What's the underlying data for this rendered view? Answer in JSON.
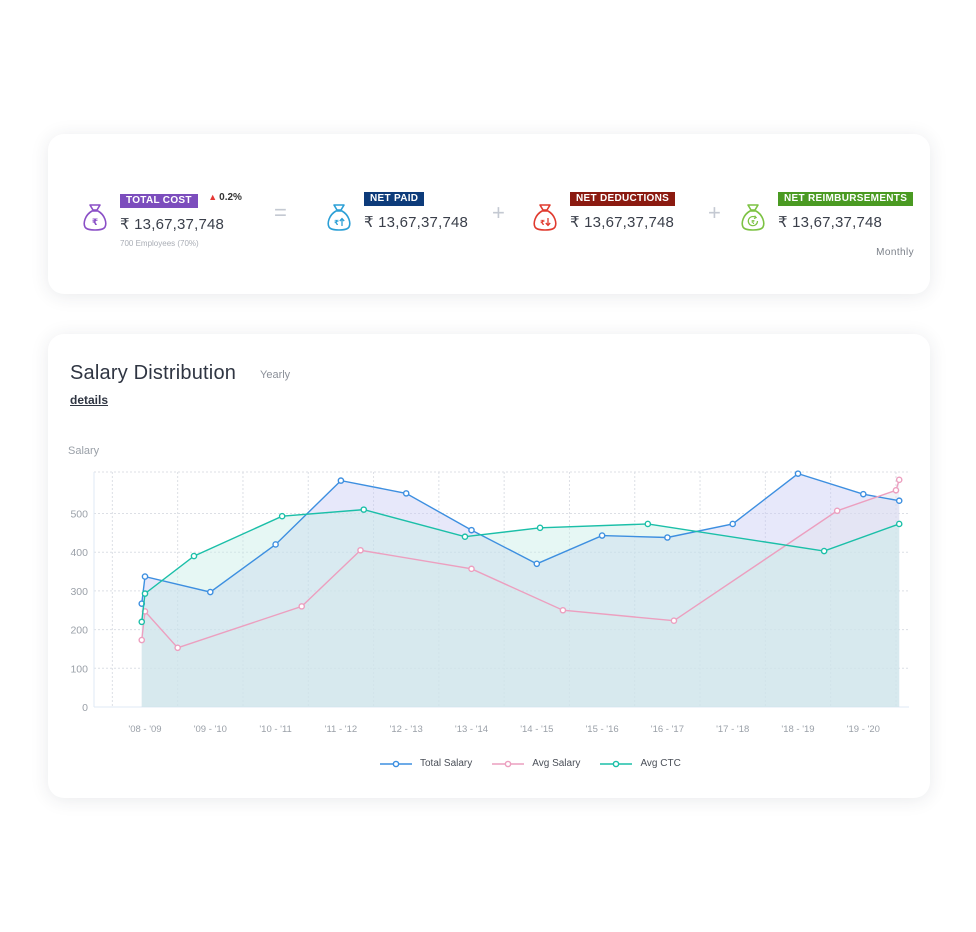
{
  "summary": {
    "total_cost": {
      "tag": "TOTAL COST",
      "tag_color": "#7c4dbd",
      "delta": "0.2%",
      "amount": "₹ 13,67,37,748",
      "sub": "700 Employees (70%)",
      "icon": "rupee-bag-icon",
      "icon_color": "#8a4fc6"
    },
    "equals_sign": "=",
    "net_paid": {
      "tag": "NET PAID",
      "tag_color": "#0d3b7a",
      "amount": "₹ 13,67,37,748",
      "icon": "rupee-up-bag-icon",
      "icon_color": "#2a9fd6"
    },
    "plus_sign": "+",
    "net_deductions": {
      "tag": "NET DEDUCTIONS",
      "tag_color": "#8b1a10",
      "amount": "₹ 13,67,37,748",
      "icon": "rupee-down-bag-icon",
      "icon_color": "#e03a2e"
    },
    "net_reimbursements": {
      "tag": "NET REIMBURSEMENTS",
      "tag_color": "#4a9a22",
      "amount": "₹ 13,67,37,748",
      "icon": "rupee-refresh-bag-icon",
      "icon_color": "#7cc242"
    },
    "period": "Monthly"
  },
  "chart_section": {
    "title": "Salary Distribution",
    "range": "Yearly",
    "details_link": "details"
  },
  "chart_data": {
    "type": "line",
    "ylabel": "Salary",
    "ylim": [
      0,
      600
    ],
    "yticks": [
      0,
      100,
      200,
      300,
      400,
      500
    ],
    "grid": true,
    "categories": [
      "'08 - '09",
      "'09 - '10",
      "'10 - '11",
      "'11 - '12",
      "'12 - '13",
      "'13 - '14",
      "'14 - '15",
      "'15 - '16",
      "'16 - '17",
      "'17 - '18",
      "'18 - '19",
      "'19 - '20"
    ],
    "series": [
      {
        "name": "Total Salary",
        "color": "#3d8fe0",
        "fill": "#c9cdf4",
        "points": [
          [
            -0.05,
            267
          ],
          [
            0.0,
            337
          ],
          [
            1.0,
            297
          ],
          [
            2.0,
            420
          ],
          [
            3.0,
            585
          ],
          [
            4.0,
            552
          ],
          [
            5.0,
            457
          ],
          [
            6.0,
            370
          ],
          [
            7.0,
            443
          ],
          [
            8.0,
            438
          ],
          [
            9.0,
            473
          ],
          [
            10.0,
            603
          ],
          [
            11.0,
            550
          ],
          [
            11.55,
            533
          ]
        ]
      },
      {
        "name": "Avg Salary",
        "color": "#ec9fbf",
        "fill": "#dfe3ee",
        "points": [
          [
            -0.05,
            173
          ],
          [
            0.0,
            247
          ],
          [
            0.5,
            153
          ],
          [
            2.4,
            260
          ],
          [
            3.3,
            405
          ],
          [
            5.0,
            357
          ],
          [
            6.4,
            250
          ],
          [
            8.1,
            223
          ],
          [
            10.6,
            507
          ],
          [
            11.5,
            560
          ],
          [
            11.55,
            587
          ]
        ]
      },
      {
        "name": "Avg CTC",
        "color": "#1bbfa8",
        "fill": "#c8eee6",
        "points": [
          [
            -0.05,
            220
          ],
          [
            0.0,
            293
          ],
          [
            0.75,
            390
          ],
          [
            2.1,
            493
          ],
          [
            3.35,
            510
          ],
          [
            4.9,
            440
          ],
          [
            6.05,
            463
          ],
          [
            7.7,
            473
          ],
          [
            10.4,
            403
          ],
          [
            11.55,
            473
          ]
        ]
      }
    ],
    "legend_position": "bottom-center"
  }
}
